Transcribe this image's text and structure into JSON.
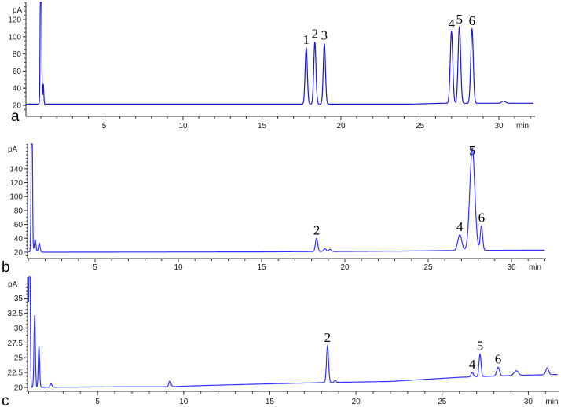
{
  "chart_data": [
    {
      "type": "line",
      "panel_label": "a",
      "ylabel": "pA",
      "xlabel": "min",
      "xlim": [
        0,
        32
      ],
      "ylim": [
        15,
        140
      ],
      "xticks": [
        "5",
        "10",
        "15",
        "20",
        "25",
        "30"
      ],
      "yticks": [
        "20",
        "40",
        "60",
        "80",
        "100",
        "120"
      ],
      "line_color": "#1a1acc",
      "baseline": [
        [
          0.05,
          21.5
        ],
        [
          1.0,
          21.5
        ],
        [
          24.5,
          21.5
        ],
        [
          26.5,
          22.5
        ],
        [
          32,
          22.5
        ]
      ],
      "solvent_peak": {
        "rt": 1.0,
        "height": 300
      },
      "peaks": [
        {
          "label": "1",
          "rt": 17.8,
          "height": 87,
          "width": 0.07
        },
        {
          "label": "2",
          "rt": 18.35,
          "height": 94,
          "width": 0.07
        },
        {
          "label": "3",
          "rt": 18.95,
          "height": 92,
          "width": 0.07
        },
        {
          "label": "4",
          "rt": 27.0,
          "height": 106,
          "width": 0.08
        },
        {
          "label": "5",
          "rt": 27.5,
          "height": 111,
          "width": 0.08
        },
        {
          "label": "6",
          "rt": 28.3,
          "height": 109,
          "width": 0.08
        }
      ],
      "minor_peaks": [
        {
          "rt": 1.15,
          "height": 45,
          "width": 0.03
        },
        {
          "rt": 30.3,
          "height": 25,
          "width": 0.12
        }
      ]
    },
    {
      "type": "line",
      "panel_label": "b",
      "ylabel": "pA",
      "xlabel": "min",
      "xlim": [
        0,
        32
      ],
      "ylim": [
        15,
        176
      ],
      "xticks": [
        "5",
        "10",
        "15",
        "20",
        "25",
        "30"
      ],
      "yticks": [
        "20",
        "40",
        "60",
        "80",
        "100",
        "120",
        "140"
      ],
      "line_color": "#3333ff",
      "baseline": [
        [
          1.0,
          20.5
        ],
        [
          2,
          20
        ],
        [
          15,
          20.5
        ],
        [
          23,
          21.5
        ],
        [
          26.5,
          22.5
        ],
        [
          32,
          23
        ]
      ],
      "solvent_peak": {
        "rt": 1.2,
        "height": 300
      },
      "peaks": [
        {
          "label": "2",
          "rt": 18.3,
          "height": 40,
          "width": 0.07
        },
        {
          "label": "4",
          "rt": 26.9,
          "height": 45,
          "width": 0.12
        },
        {
          "label": "5",
          "rt": 27.65,
          "height": 169,
          "width": 0.15
        },
        {
          "label": "6",
          "rt": 28.2,
          "height": 58,
          "width": 0.07
        }
      ],
      "minor_peaks": [
        {
          "rt": 1.4,
          "height": 38,
          "width": 0.05
        },
        {
          "rt": 1.65,
          "height": 33,
          "width": 0.05
        },
        {
          "rt": 18.8,
          "height": 25,
          "width": 0.08
        },
        {
          "rt": 19.1,
          "height": 24,
          "width": 0.08
        }
      ]
    },
    {
      "type": "line",
      "panel_label": "c",
      "ylabel": "pA",
      "xlabel": "min",
      "xlim": [
        0,
        32
      ],
      "ylim": [
        19,
        37.5
      ],
      "xticks": [
        "5",
        "10",
        "15",
        "20",
        "25",
        "30"
      ],
      "yticks": [
        "20",
        "22.5",
        "25",
        "27.5",
        "30",
        "32.5",
        "35"
      ],
      "line_color": "#3333ff",
      "baseline": [
        [
          1.0,
          20
        ],
        [
          6,
          20.1
        ],
        [
          9,
          20.1
        ],
        [
          11,
          20.3
        ],
        [
          15,
          20.6
        ],
        [
          18,
          20.8
        ],
        [
          22,
          21
        ],
        [
          26,
          21.7
        ],
        [
          29,
          22
        ],
        [
          32,
          22.2
        ]
      ],
      "solvent_peak": {
        "rt": 1.05,
        "height": 60
      },
      "peaks": [
        {
          "label": "2",
          "rt": 18.35,
          "height": 27.0,
          "width": 0.06
        },
        {
          "label": "4",
          "rt": 26.75,
          "height": 22.5,
          "width": 0.07
        },
        {
          "label": "5",
          "rt": 27.2,
          "height": 25.6,
          "width": 0.06
        },
        {
          "label": "6",
          "rt": 28.25,
          "height": 23.4,
          "width": 0.08
        }
      ],
      "minor_peaks": [
        {
          "rt": 1.35,
          "height": 32.2,
          "width": 0.04
        },
        {
          "rt": 1.6,
          "height": 27,
          "width": 0.04
        },
        {
          "rt": 2.3,
          "height": 20.6,
          "width": 0.05
        },
        {
          "rt": 9.2,
          "height": 21.1,
          "width": 0.06
        },
        {
          "rt": 18.8,
          "height": 21.2,
          "width": 0.05
        },
        {
          "rt": 29.3,
          "height": 22.8,
          "width": 0.12
        },
        {
          "rt": 31.1,
          "height": 23.3,
          "width": 0.08
        }
      ]
    }
  ]
}
